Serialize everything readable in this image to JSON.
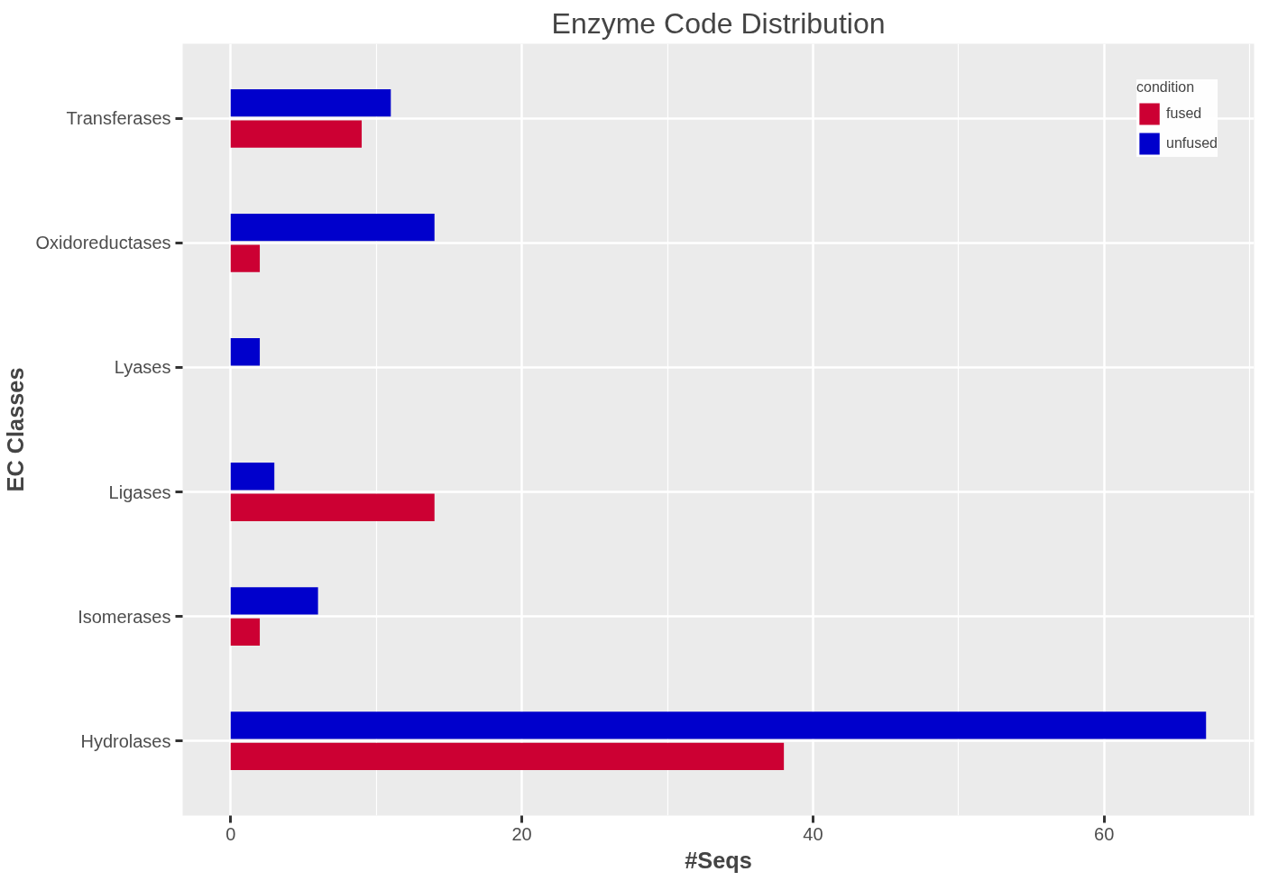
{
  "chart_data": {
    "type": "bar",
    "orientation": "horizontal",
    "title": "Enzyme Code Distribution",
    "xlabel": "#Seqs",
    "ylabel": "EC Classes",
    "legend_title": "condition",
    "categories": [
      "Transferases",
      "Oxidoreductases",
      "Lyases",
      "Ligases",
      "Isomerases",
      "Hydrolases"
    ],
    "series": [
      {
        "name": "fused",
        "color": "#cc0033",
        "values": [
          9,
          2,
          null,
          14,
          2,
          38
        ]
      },
      {
        "name": "unfused",
        "color": "#0000cc",
        "values": [
          11,
          14,
          2,
          3,
          6,
          67
        ]
      }
    ],
    "xlim": [
      -3.3,
      70.3
    ],
    "xticks": [
      0,
      20,
      40,
      60
    ],
    "grid": true,
    "legend": "top right"
  }
}
